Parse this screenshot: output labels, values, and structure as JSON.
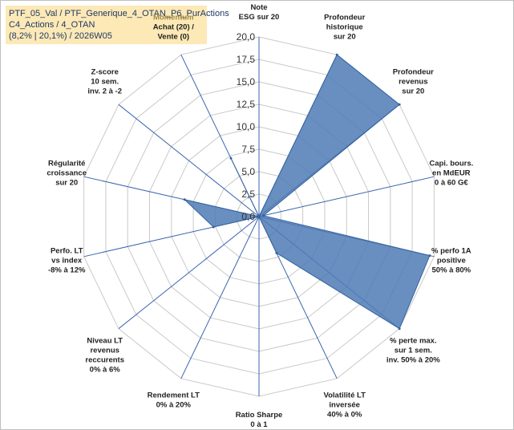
{
  "header": {
    "line1": "PTF_05_Val / PTF_Generique_4_OTAN_P6_PurActions",
    "line2": "C4_Actions / 4_OTAN",
    "line3": "(8,2% | 20,1%) / 2026W05"
  },
  "chart_data": {
    "type": "radar",
    "rmin": 0,
    "rmax": 20,
    "ticks": [
      "0,0",
      "2,5",
      "5,0",
      "7,5",
      "10,0",
      "12,5",
      "15,0",
      "17,5",
      "20,0"
    ],
    "axes": [
      {
        "label": [
          "Note",
          "ESG sur 20"
        ],
        "value": 0,
        "highlight_first": false
      },
      {
        "label": [
          "Profondeur",
          "historique",
          "sur 20"
        ],
        "value": 20,
        "highlight_first": false
      },
      {
        "label": [
          "Profondeur",
          "revenus",
          "sur 20"
        ],
        "value": 20,
        "highlight_first": false
      },
      {
        "label": [
          "Capi. bours.",
          "en MdEUR",
          "0 à 60 G€"
        ],
        "value": 0.5,
        "highlight_first": false
      },
      {
        "label": [
          "% perfo 1A",
          "positive",
          "50% à 80%"
        ],
        "value": 19.5,
        "highlight_first": false
      },
      {
        "label": [
          "% perte max.",
          "sur 1 sem.",
          "inv. 50% à 20%"
        ],
        "value": 20,
        "highlight_first": false
      },
      {
        "label": [
          "Volatilité LT",
          "inversée",
          "40% à 0%"
        ],
        "value": 4.5,
        "highlight_first": false
      },
      {
        "label": [
          "Ratio Sharpe",
          "0 à 1"
        ],
        "value": 0,
        "highlight_first": false
      },
      {
        "label": [
          "Rendement LT",
          "0% à 20%"
        ],
        "value": 0,
        "highlight_first": false
      },
      {
        "label": [
          "Niveau LT",
          "revenus",
          "reccurents",
          "0% à 6%"
        ],
        "value": 0,
        "highlight_first": false
      },
      {
        "label": [
          "Perfo. LT",
          "vs index",
          "-8% à 12%"
        ],
        "value": 5.2,
        "highlight_first": false
      },
      {
        "label": [
          "Régularité",
          "croissance",
          "sur 20"
        ],
        "value": 8.5,
        "highlight_first": false
      },
      {
        "label": [
          "Z-score",
          "10 sem.",
          "inv. 2 à -2"
        ],
        "value": 0,
        "highlight_first": false
      },
      {
        "label": [
          "Momentum",
          "Achat (20) /",
          "Vente (0)"
        ],
        "value": 7.2,
        "highlight_first": true
      }
    ],
    "colors": {
      "fill": "#4f7bb5",
      "stroke": "#34629e",
      "spoke": "#3a66b0",
      "grid": "#c9c9c9"
    }
  }
}
